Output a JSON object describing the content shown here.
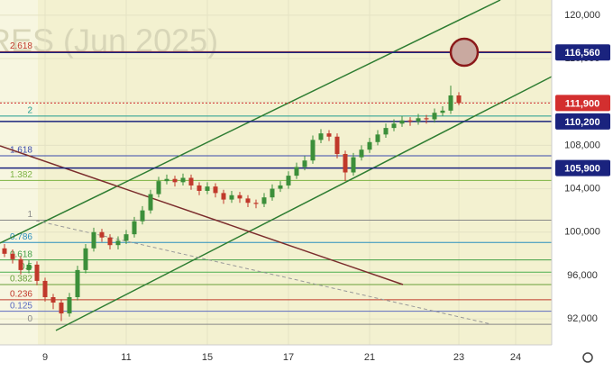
{
  "chart_data": {
    "type": "candlestick",
    "watermark": "URES (Jun 2025)",
    "categories": [
      null,
      null,
      null,
      null,
      null,
      "9",
      null,
      null,
      null,
      null,
      null,
      null,
      null,
      null,
      null,
      "11",
      null,
      null,
      null,
      null,
      null,
      null,
      null,
      null,
      null,
      "15",
      null,
      null,
      null,
      null,
      null,
      null,
      null,
      null,
      null,
      "17",
      null,
      null,
      null,
      null,
      null,
      null,
      null,
      null,
      null,
      "21",
      null,
      null,
      null,
      null,
      null,
      null,
      null,
      null,
      null,
      null,
      "23",
      null,
      null,
      null,
      null,
      null,
      null,
      "24"
    ],
    "open": [
      98500,
      98000,
      97500,
      96500,
      97000,
      95500,
      94000,
      93500,
      92500,
      94000,
      96500,
      98500,
      100000,
      99500,
      98800,
      99200,
      99800,
      101000,
      102000,
      103500,
      104700,
      104900,
      104600,
      105000,
      104300,
      103800,
      104200,
      103600,
      103000,
      103400,
      103100,
      102700,
      102600,
      103200,
      104000,
      104300,
      105200,
      106000,
      106600,
      108500,
      109100,
      108800,
      107200,
      105500,
      106900,
      107600,
      108300,
      109000,
      109600,
      110000,
      110300,
      110200,
      110500,
      110400,
      111000,
      111200,
      112600,
      null,
      null,
      null,
      null,
      null,
      null,
      null
    ],
    "high": [
      98900,
      98400,
      97800,
      97400,
      97300,
      95800,
      94300,
      93800,
      94400,
      96900,
      98900,
      100400,
      100300,
      99800,
      99600,
      100200,
      101400,
      102400,
      103900,
      105100,
      105300,
      105200,
      105400,
      105300,
      104600,
      104600,
      104500,
      103900,
      103800,
      103700,
      103400,
      103000,
      103600,
      104400,
      104700,
      105600,
      106400,
      107000,
      108900,
      109500,
      109400,
      109100,
      107500,
      107300,
      108000,
      108700,
      109400,
      110000,
      110400,
      110700,
      110600,
      110900,
      110800,
      111400,
      111600,
      113500,
      112900,
      null,
      null,
      null,
      null,
      null,
      null,
      null
    ],
    "low": [
      97700,
      97100,
      96100,
      96200,
      95100,
      93600,
      92900,
      91800,
      92200,
      93700,
      96200,
      98200,
      99100,
      98400,
      98400,
      98900,
      99500,
      100700,
      101700,
      103200,
      104400,
      104200,
      104300,
      103900,
      103400,
      103500,
      103200,
      102600,
      102700,
      102700,
      102300,
      102200,
      102300,
      102900,
      103700,
      104000,
      104900,
      105700,
      106300,
      108200,
      108400,
      106800,
      104700,
      105200,
      106600,
      107300,
      108000,
      108700,
      109300,
      109700,
      109800,
      109900,
      110000,
      110100,
      110700,
      110900,
      111700,
      null,
      null,
      null,
      null,
      null,
      null,
      null
    ],
    "close": [
      98000,
      97500,
      96500,
      97000,
      95500,
      94000,
      93500,
      92500,
      94000,
      96500,
      98500,
      100000,
      99500,
      98800,
      99200,
      99800,
      101000,
      102000,
      103500,
      104700,
      104900,
      104600,
      105000,
      104300,
      103800,
      104200,
      103600,
      103000,
      103400,
      103100,
      102700,
      102600,
      103200,
      104000,
      104300,
      105200,
      106000,
      106600,
      108500,
      109100,
      108800,
      107200,
      105500,
      106900,
      107600,
      108300,
      109000,
      109600,
      110000,
      110300,
      110200,
      110500,
      110400,
      111000,
      111200,
      112600,
      111900,
      null,
      null,
      null,
      null,
      null,
      null,
      null
    ],
    "up_color": "#3c8f3a",
    "down_color": "#c0392b",
    "ylim": [
      89600,
      121400
    ],
    "yticks": [
      {
        "value": 120000,
        "label": "120,000"
      },
      {
        "value": 116000,
        "label": "116,000"
      },
      {
        "value": 112000,
        "label": "112,000"
      },
      {
        "value": 108000,
        "label": "108,000"
      },
      {
        "value": 104000,
        "label": "104,000"
      },
      {
        "value": 100000,
        "label": "100,000"
      },
      {
        "value": 96000,
        "label": "96,000"
      },
      {
        "value": 92000,
        "label": "92,000"
      }
    ],
    "grid": true,
    "fib_range": [
      91500,
      101100
    ],
    "fib_levels": [
      {
        "level": 2.618,
        "color": "#c0392b"
      },
      {
        "level": 2,
        "color": "#1f9c8f"
      },
      {
        "level": 1.618,
        "color": "#3949ab"
      },
      {
        "level": 1.382,
        "color": "#7cb342"
      },
      {
        "level": 1,
        "color": "#888888"
      },
      {
        "level": 0.786,
        "color": "#2a8fbd"
      },
      {
        "level": 0.618,
        "color": "#43a047"
      },
      {
        "level": 0.5,
        "color": "#4caf50"
      },
      {
        "level": 0.382,
        "color": "#689f38"
      },
      {
        "level": 0.236,
        "color": "#c0392b"
      },
      {
        "level": 0.125,
        "color": "#5c6bc0"
      },
      {
        "level": 0,
        "color": "#888888"
      }
    ],
    "price_lines": [
      {
        "value": 116560,
        "label": "116,560",
        "color": "#1a237e",
        "dashed": false
      },
      {
        "value": 111900,
        "label": "111,900",
        "color": "#d32f2f",
        "dashed": true
      },
      {
        "value": 110200,
        "label": "110,200",
        "color": "#1a237e",
        "dashed": false
      },
      {
        "value": 105900,
        "label": "105,900",
        "color": "#1a237e",
        "dashed": false
      }
    ]
  }
}
